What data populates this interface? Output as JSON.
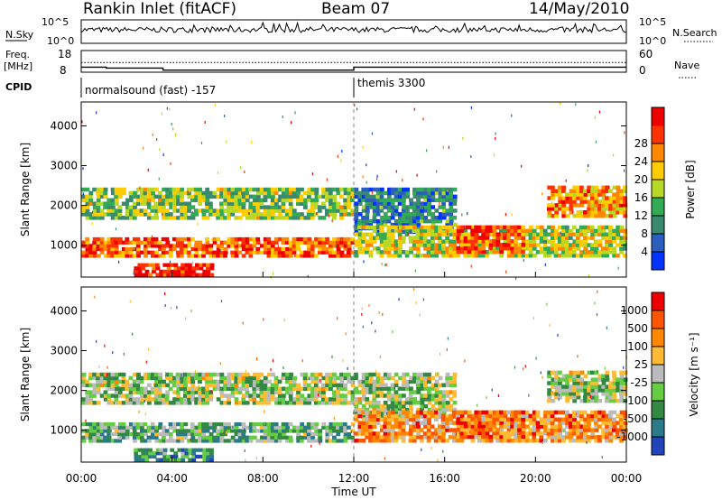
{
  "header": {
    "station": "Rankin Inlet (fitACF)",
    "beam": "Beam 07",
    "date": "14/May/2010"
  },
  "summary_panels": {
    "nsky_label": "N.Sky",
    "nsky_ticks": [
      "10^5",
      "10^0"
    ],
    "nsearch_label": "N.Search",
    "nsearch_ticks": [
      "10^5",
      "10^0"
    ],
    "freq_label": "Freq.",
    "freq_unit": "[MHz]",
    "freq_ticks": [
      "18",
      "8"
    ],
    "nave_label": "Nave",
    "nave_ticks": [
      "60",
      "0"
    ],
    "cpid_label": "CPID",
    "cpid_segments": [
      {
        "label": "normalsound (fast) -157",
        "start_hour": 0
      },
      {
        "label": "themis 3300",
        "start_hour": 12
      }
    ],
    "freq_series": [
      {
        "x": 0,
        "y": 10.2
      },
      {
        "x": 1.1,
        "y": 10.2
      },
      {
        "x": 1.1,
        "y": 9.7
      },
      {
        "x": 3.6,
        "y": 9.7
      },
      {
        "x": 3.6,
        "y": 8.6
      },
      {
        "x": 12,
        "y": 8.6
      },
      {
        "x": 12,
        "y": 10.2
      },
      {
        "x": 24,
        "y": 10.2
      }
    ],
    "nave_level": 28
  },
  "chart_data": [
    {
      "type": "heatmap",
      "name": "power",
      "ylabel": "Slant Range [km]",
      "ylim": [
        200,
        4600
      ],
      "y_ticks": [
        1000,
        2000,
        3000,
        4000
      ],
      "xlim": [
        0,
        24
      ],
      "colorbar_label": "Power [dB]",
      "colorbar_ticks": [
        "4",
        "8",
        "12",
        "16",
        "20",
        "24",
        "28"
      ],
      "colors": [
        "#0033ff",
        "#2a5fbf",
        "#3a8a70",
        "#33aa55",
        "#b8d828",
        "#ffcc00",
        "#ff8800",
        "#ff3300",
        "#ee0000"
      ],
      "bands": [
        {
          "x0": 0,
          "x1": 12,
          "y0": 1650,
          "y1": 2450,
          "level": 0.45
        },
        {
          "x0": 0,
          "x1": 12,
          "y0": 700,
          "y1": 1200,
          "level": 0.8
        },
        {
          "x0": 2.3,
          "x1": 5.8,
          "y0": 220,
          "y1": 550,
          "level": 0.95
        },
        {
          "x0": 12,
          "x1": 16.5,
          "y0": 1300,
          "y1": 2450,
          "level": 0.25
        },
        {
          "x0": 12,
          "x1": 24,
          "y0": 700,
          "y1": 1500,
          "level": 0.55
        },
        {
          "x0": 16.5,
          "x1": 19.5,
          "y0": 800,
          "y1": 1500,
          "level": 0.85
        },
        {
          "x0": 20.5,
          "x1": 24,
          "y0": 1700,
          "y1": 2500,
          "level": 0.7
        }
      ]
    },
    {
      "type": "heatmap",
      "name": "velocity",
      "ylabel": "Slant Range [km]",
      "xlabel": "Time UT",
      "ylim": [
        200,
        4600
      ],
      "y_ticks": [
        1000,
        2000,
        3000,
        4000
      ],
      "xlim": [
        0,
        24
      ],
      "x_ticks": [
        "00:00",
        "04:00",
        "08:00",
        "12:00",
        "16:00",
        "20:00",
        "00:00"
      ],
      "colorbar_label": "Velocity [m s⁻¹]",
      "colorbar_ticks": [
        "1000",
        "500",
        "100",
        "25",
        "-25",
        "-100",
        "-500",
        "-1000"
      ],
      "colors": [
        "#2244bb",
        "#2a7a8a",
        "#338844",
        "#66cc44",
        "#bbbbbb",
        "#ffbb33",
        "#ff8800",
        "#ff5500",
        "#ee0000"
      ],
      "bands": [
        {
          "x0": 0,
          "x1": 12,
          "y0": 1650,
          "y1": 2450,
          "level": 0.45
        },
        {
          "x0": 0,
          "x1": 12,
          "y0": 700,
          "y1": 1200,
          "level": 0.35
        },
        {
          "x0": 2.3,
          "x1": 5.8,
          "y0": 220,
          "y1": 550,
          "level": 0.25
        },
        {
          "x0": 12,
          "x1": 16.5,
          "y0": 1300,
          "y1": 2450,
          "level": 0.45
        },
        {
          "x0": 12,
          "x1": 24,
          "y0": 700,
          "y1": 1500,
          "level": 0.7
        },
        {
          "x0": 16.5,
          "x1": 19.5,
          "y0": 800,
          "y1": 1500,
          "level": 0.75
        },
        {
          "x0": 20.5,
          "x1": 24,
          "y0": 1700,
          "y1": 2500,
          "level": 0.45
        }
      ]
    }
  ]
}
